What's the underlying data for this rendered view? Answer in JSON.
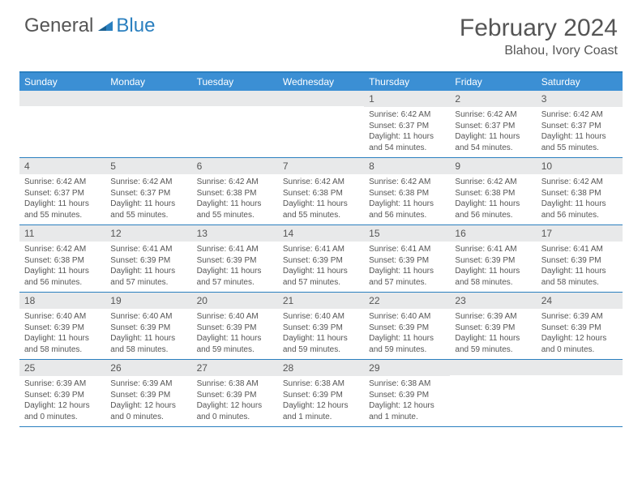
{
  "logo": {
    "general": "General",
    "blue": "Blue"
  },
  "title": "February 2024",
  "location": "Blahou, Ivory Coast",
  "colors": {
    "header_bar": "#3b8fd4",
    "border": "#2a7fbf",
    "day_num_bg": "#e8e9ea",
    "text": "#555555",
    "white": "#ffffff"
  },
  "weekdays": [
    "Sunday",
    "Monday",
    "Tuesday",
    "Wednesday",
    "Thursday",
    "Friday",
    "Saturday"
  ],
  "weeks": [
    [
      null,
      null,
      null,
      null,
      {
        "n": "1",
        "sr": "Sunrise: 6:42 AM",
        "ss": "Sunset: 6:37 PM",
        "dl": "Daylight: 11 hours and 54 minutes."
      },
      {
        "n": "2",
        "sr": "Sunrise: 6:42 AM",
        "ss": "Sunset: 6:37 PM",
        "dl": "Daylight: 11 hours and 54 minutes."
      },
      {
        "n": "3",
        "sr": "Sunrise: 6:42 AM",
        "ss": "Sunset: 6:37 PM",
        "dl": "Daylight: 11 hours and 55 minutes."
      }
    ],
    [
      {
        "n": "4",
        "sr": "Sunrise: 6:42 AM",
        "ss": "Sunset: 6:37 PM",
        "dl": "Daylight: 11 hours and 55 minutes."
      },
      {
        "n": "5",
        "sr": "Sunrise: 6:42 AM",
        "ss": "Sunset: 6:37 PM",
        "dl": "Daylight: 11 hours and 55 minutes."
      },
      {
        "n": "6",
        "sr": "Sunrise: 6:42 AM",
        "ss": "Sunset: 6:38 PM",
        "dl": "Daylight: 11 hours and 55 minutes."
      },
      {
        "n": "7",
        "sr": "Sunrise: 6:42 AM",
        "ss": "Sunset: 6:38 PM",
        "dl": "Daylight: 11 hours and 55 minutes."
      },
      {
        "n": "8",
        "sr": "Sunrise: 6:42 AM",
        "ss": "Sunset: 6:38 PM",
        "dl": "Daylight: 11 hours and 56 minutes."
      },
      {
        "n": "9",
        "sr": "Sunrise: 6:42 AM",
        "ss": "Sunset: 6:38 PM",
        "dl": "Daylight: 11 hours and 56 minutes."
      },
      {
        "n": "10",
        "sr": "Sunrise: 6:42 AM",
        "ss": "Sunset: 6:38 PM",
        "dl": "Daylight: 11 hours and 56 minutes."
      }
    ],
    [
      {
        "n": "11",
        "sr": "Sunrise: 6:42 AM",
        "ss": "Sunset: 6:38 PM",
        "dl": "Daylight: 11 hours and 56 minutes."
      },
      {
        "n": "12",
        "sr": "Sunrise: 6:41 AM",
        "ss": "Sunset: 6:39 PM",
        "dl": "Daylight: 11 hours and 57 minutes."
      },
      {
        "n": "13",
        "sr": "Sunrise: 6:41 AM",
        "ss": "Sunset: 6:39 PM",
        "dl": "Daylight: 11 hours and 57 minutes."
      },
      {
        "n": "14",
        "sr": "Sunrise: 6:41 AM",
        "ss": "Sunset: 6:39 PM",
        "dl": "Daylight: 11 hours and 57 minutes."
      },
      {
        "n": "15",
        "sr": "Sunrise: 6:41 AM",
        "ss": "Sunset: 6:39 PM",
        "dl": "Daylight: 11 hours and 57 minutes."
      },
      {
        "n": "16",
        "sr": "Sunrise: 6:41 AM",
        "ss": "Sunset: 6:39 PM",
        "dl": "Daylight: 11 hours and 58 minutes."
      },
      {
        "n": "17",
        "sr": "Sunrise: 6:41 AM",
        "ss": "Sunset: 6:39 PM",
        "dl": "Daylight: 11 hours and 58 minutes."
      }
    ],
    [
      {
        "n": "18",
        "sr": "Sunrise: 6:40 AM",
        "ss": "Sunset: 6:39 PM",
        "dl": "Daylight: 11 hours and 58 minutes."
      },
      {
        "n": "19",
        "sr": "Sunrise: 6:40 AM",
        "ss": "Sunset: 6:39 PM",
        "dl": "Daylight: 11 hours and 58 minutes."
      },
      {
        "n": "20",
        "sr": "Sunrise: 6:40 AM",
        "ss": "Sunset: 6:39 PM",
        "dl": "Daylight: 11 hours and 59 minutes."
      },
      {
        "n": "21",
        "sr": "Sunrise: 6:40 AM",
        "ss": "Sunset: 6:39 PM",
        "dl": "Daylight: 11 hours and 59 minutes."
      },
      {
        "n": "22",
        "sr": "Sunrise: 6:40 AM",
        "ss": "Sunset: 6:39 PM",
        "dl": "Daylight: 11 hours and 59 minutes."
      },
      {
        "n": "23",
        "sr": "Sunrise: 6:39 AM",
        "ss": "Sunset: 6:39 PM",
        "dl": "Daylight: 11 hours and 59 minutes."
      },
      {
        "n": "24",
        "sr": "Sunrise: 6:39 AM",
        "ss": "Sunset: 6:39 PM",
        "dl": "Daylight: 12 hours and 0 minutes."
      }
    ],
    [
      {
        "n": "25",
        "sr": "Sunrise: 6:39 AM",
        "ss": "Sunset: 6:39 PM",
        "dl": "Daylight: 12 hours and 0 minutes."
      },
      {
        "n": "26",
        "sr": "Sunrise: 6:39 AM",
        "ss": "Sunset: 6:39 PM",
        "dl": "Daylight: 12 hours and 0 minutes."
      },
      {
        "n": "27",
        "sr": "Sunrise: 6:38 AM",
        "ss": "Sunset: 6:39 PM",
        "dl": "Daylight: 12 hours and 0 minutes."
      },
      {
        "n": "28",
        "sr": "Sunrise: 6:38 AM",
        "ss": "Sunset: 6:39 PM",
        "dl": "Daylight: 12 hours and 1 minute."
      },
      {
        "n": "29",
        "sr": "Sunrise: 6:38 AM",
        "ss": "Sunset: 6:39 PM",
        "dl": "Daylight: 12 hours and 1 minute."
      },
      null,
      null
    ]
  ]
}
